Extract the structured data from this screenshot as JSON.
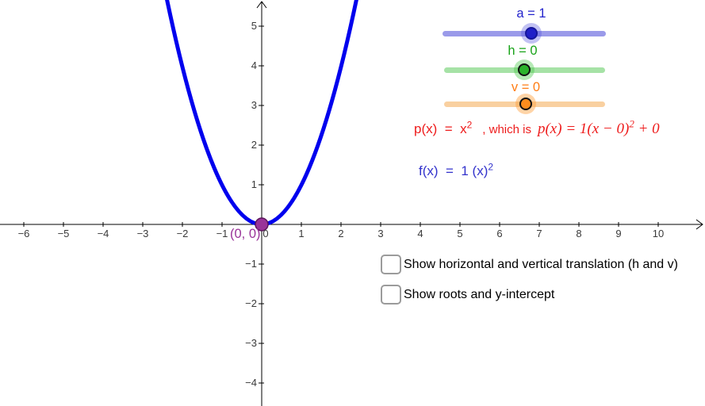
{
  "graph": {
    "curve": {
      "equation": "p(x) = x^2",
      "color": "#0000ee"
    },
    "vertex": {
      "label": "(0, 0)",
      "fill": "#993399",
      "stroke": "#5a155a",
      "label_color": "#993399"
    },
    "x_ticks": [
      {
        "label": "−6",
        "v": -6
      },
      {
        "label": "−5",
        "v": -5
      },
      {
        "label": "−4",
        "v": -4
      },
      {
        "label": "−3",
        "v": -3
      },
      {
        "label": "−2",
        "v": -2
      },
      {
        "label": "−1",
        "v": -1
      },
      {
        "label": "0",
        "v": 0,
        "dx": 5
      },
      {
        "label": "1",
        "v": 1
      },
      {
        "label": "2",
        "v": 2
      },
      {
        "label": "3",
        "v": 3
      },
      {
        "label": "4",
        "v": 4
      },
      {
        "label": "5",
        "v": 5
      },
      {
        "label": "6",
        "v": 6
      },
      {
        "label": "7",
        "v": 7
      },
      {
        "label": "8",
        "v": 8
      },
      {
        "label": "9",
        "v": 9
      },
      {
        "label": "10",
        "v": 10
      }
    ],
    "y_ticks": [
      {
        "label": "5",
        "v": 5
      },
      {
        "label": "4",
        "v": 4
      },
      {
        "label": "3",
        "v": 3
      },
      {
        "label": "2",
        "v": 2
      },
      {
        "label": "1",
        "v": 1
      },
      {
        "label": "−1",
        "v": -1
      },
      {
        "label": "−2",
        "v": -2
      },
      {
        "label": "−3",
        "v": -3
      },
      {
        "label": "−4",
        "v": -4
      }
    ]
  },
  "sliders": [
    {
      "id": "a",
      "label": "a = 1",
      "value": 1,
      "pos_pct": 54.6,
      "label_color": "#2323cc",
      "track_color": "#9a9ae9",
      "knob_color": "#2020c8",
      "knob_border": "#15159a",
      "halo_color": "rgba(80,80,220,0.35)"
    },
    {
      "id": "h",
      "label": "h = 0",
      "value": 0,
      "pos_pct": 49.8,
      "label_color": "#17a317",
      "track_color": "#a6e2a6",
      "knob_color": "#2bb32b",
      "knob_border": "#111111",
      "halo_color": "rgba(70,200,70,0.4)"
    },
    {
      "id": "v",
      "label": "v = 0",
      "value": 0,
      "pos_pct": 50.7,
      "label_color": "#ff7d15",
      "track_color": "#f9d0a0",
      "knob_color": "#ff8d1e",
      "knob_border": "#111111",
      "halo_color": "rgba(255,160,60,0.45)"
    }
  ],
  "equations": {
    "p_color": "#ee1c1c",
    "p_base": "p(x)  =  x",
    "p_sup": "2",
    "which_is": ", which is",
    "full_base": "p(x) = 1(x − 0)",
    "full_sup": "2",
    "full_tail": " + 0",
    "f_color": "#3333cc",
    "f_base": "f(x)  =  1 (x)",
    "f_sup": "2"
  },
  "checkboxes": [
    {
      "label": "Show horizontal and vertical translation (h and v)",
      "checked": false
    },
    {
      "label": "Show roots and y-intercept",
      "checked": false
    }
  ]
}
